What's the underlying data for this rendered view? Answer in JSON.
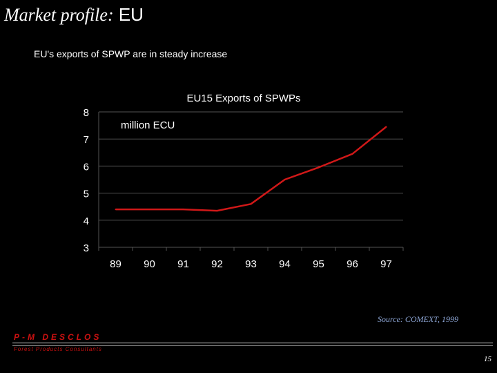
{
  "slide": {
    "title_serif": "Market profile:",
    "title_sans": "EU",
    "subtitle": "EU's exports of SPWP are in steady increase",
    "source": "Source: COMEXT, 1999",
    "brand": "P-M DESCLOS",
    "brand_sub": "Forest Products Consultants",
    "page_number": "15"
  },
  "chart_data": {
    "type": "line",
    "title": "EU15 Exports of SPWPs",
    "annotation": "million ECU",
    "categories": [
      "89",
      "90",
      "91",
      "92",
      "93",
      "94",
      "95",
      "96",
      "97"
    ],
    "series": [
      {
        "values": [
          4.4,
          4.4,
          4.4,
          4.35,
          4.6,
          5.5,
          5.95,
          6.45,
          7.45
        ]
      }
    ],
    "ylim": [
      3,
      8
    ],
    "yticks": [
      "3",
      "4",
      "5",
      "6",
      "7",
      "8"
    ],
    "grid": true,
    "colors": {
      "line": "#d01818",
      "grid": "#555555",
      "axis_text": "#ffffff",
      "title_text": "#ffffff",
      "annotation_text": "#ffffff"
    }
  }
}
